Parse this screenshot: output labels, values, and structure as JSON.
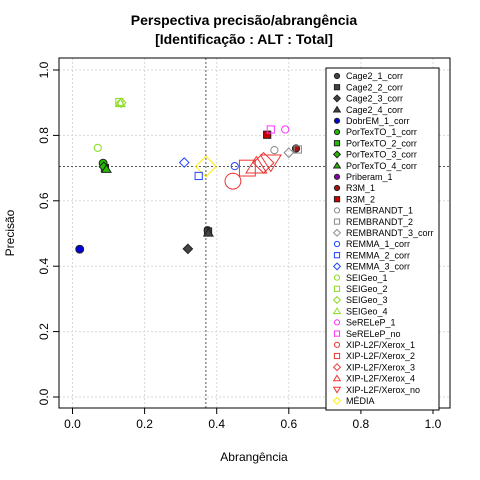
{
  "chart_data": {
    "type": "scatter",
    "title": "Perspectiva precisão/abrangência",
    "subtitle": "[Identificação : ALT : Total]",
    "xlabel": "Abrangência",
    "ylabel": "Precisão",
    "xlim": [
      0,
      1
    ],
    "ylim": [
      0,
      1
    ],
    "xticks": [
      "0.0",
      "0.2",
      "0.4",
      "0.6",
      "0.8",
      "1.0"
    ],
    "yticks": [
      "0.0",
      "0.2",
      "0.4",
      "0.6",
      "0.8",
      "1.0"
    ],
    "grid": true,
    "legend_position": "right",
    "reference_lines": {
      "x": 0.37,
      "y": 0.705
    },
    "series": [
      {
        "name": "Cage2_1_corr",
        "color": "#444444",
        "marker": "circle-filled",
        "size": 1,
        "x": 0.375,
        "y": 0.51
      },
      {
        "name": "Cage2_2_corr",
        "color": "#444444",
        "marker": "square-filled",
        "size": 1,
        "x": 0.376,
        "y": 0.506
      },
      {
        "name": "Cage2_3_corr",
        "color": "#444444",
        "marker": "diamond-filled",
        "size": 1,
        "x": 0.32,
        "y": 0.453
      },
      {
        "name": "Cage2_4_corr",
        "color": "#444444",
        "marker": "triangle-filled",
        "size": 1,
        "x": 0.377,
        "y": 0.502
      },
      {
        "name": "DobrEM_1_corr",
        "color": "#0000dd",
        "marker": "circle-filled",
        "size": 1.1,
        "x": 0.02,
        "y": 0.452
      },
      {
        "name": "PorTexTO_1_corr",
        "color": "#22bb00",
        "marker": "circle-filled",
        "size": 1.1,
        "x": 0.085,
        "y": 0.715
      },
      {
        "name": "PorTexTO_2_corr",
        "color": "#22bb00",
        "marker": "square-filled",
        "size": 1,
        "x": 0.09,
        "y": 0.7
      },
      {
        "name": "PorTexTO_3_corr",
        "color": "#22bb00",
        "marker": "diamond-filled",
        "size": 1,
        "x": 0.087,
        "y": 0.704
      },
      {
        "name": "PorTexTO_4_corr",
        "color": "#22bb00",
        "marker": "triangle-filled",
        "size": 1,
        "x": 0.094,
        "y": 0.697
      },
      {
        "name": "Priberam_1",
        "color": "#8800aa",
        "marker": "circle-filled",
        "size": 1,
        "x": null,
        "y": null
      },
      {
        "name": "R3M_1",
        "color": "#aa1111",
        "marker": "circle-filled",
        "size": 1,
        "x": 0.62,
        "y": 0.76
      },
      {
        "name": "R3M_2",
        "color": "#cc0000",
        "marker": "square-filled",
        "size": 1,
        "x": 0.54,
        "y": 0.802
      },
      {
        "name": "REMBRANDT_1",
        "color": "#888888",
        "marker": "circle-open",
        "size": 1,
        "x": 0.56,
        "y": 0.755
      },
      {
        "name": "REMBRANDT_2",
        "color": "#888888",
        "marker": "square-open",
        "size": 1,
        "x": 0.625,
        "y": 0.757
      },
      {
        "name": "REMBRANDT_3_corr",
        "color": "#888888",
        "marker": "diamond-open",
        "size": 1,
        "x": 0.6,
        "y": 0.747
      },
      {
        "name": "REMMA_1_corr",
        "color": "#2244ff",
        "marker": "circle-open",
        "size": 1,
        "x": 0.45,
        "y": 0.706
      },
      {
        "name": "REMMA_2_corr",
        "color": "#2244ff",
        "marker": "square-open",
        "size": 1,
        "x": 0.35,
        "y": 0.676
      },
      {
        "name": "REMMA_3_corr",
        "color": "#2244ff",
        "marker": "diamond-open",
        "size": 1,
        "x": 0.31,
        "y": 0.717
      },
      {
        "name": "SEIGeo_1",
        "color": "#88dd22",
        "marker": "circle-open",
        "size": 1,
        "x": 0.07,
        "y": 0.762
      },
      {
        "name": "SEIGeo_2",
        "color": "#88dd22",
        "marker": "square-open",
        "size": 1,
        "x": 0.13,
        "y": 0.902
      },
      {
        "name": "SEIGeo_3",
        "color": "#88dd22",
        "marker": "diamond-open",
        "size": 1,
        "x": 0.135,
        "y": 0.9
      },
      {
        "name": "SEIGeo_4",
        "color": "#88dd22",
        "marker": "triangle-open",
        "size": 1,
        "x": 0.133,
        "y": 0.898
      },
      {
        "name": "SeRELeP_1",
        "color": "#ff33ff",
        "marker": "circle-open",
        "size": 1,
        "x": 0.59,
        "y": 0.818
      },
      {
        "name": "SeRELeP_no",
        "color": "#ff33ff",
        "marker": "square-open",
        "size": 1,
        "x": 0.55,
        "y": 0.818
      },
      {
        "name": "XIP-L2F/Xerox_1",
        "color": "#ee3333",
        "marker": "circle-open",
        "size": 2.2,
        "x": 0.445,
        "y": 0.66
      },
      {
        "name": "XIP-L2F/Xerox_2",
        "color": "#ee3333",
        "marker": "square-open",
        "size": 2.2,
        "x": 0.485,
        "y": 0.7
      },
      {
        "name": "XIP-L2F/Xerox_3",
        "color": "#ee3333",
        "marker": "diamond-open",
        "size": 2.2,
        "x": 0.53,
        "y": 0.716
      },
      {
        "name": "XIP-L2F/Xerox_4",
        "color": "#ee3333",
        "marker": "triangle-open",
        "size": 2.2,
        "x": 0.51,
        "y": 0.707
      },
      {
        "name": "XIP-L2F/Xerox_no",
        "color": "#ee3333",
        "marker": "triangle-down-open",
        "size": 2.2,
        "x": 0.55,
        "y": 0.718
      },
      {
        "name": "MÉDIA",
        "color": "#ffee00",
        "marker": "diamond-open",
        "size": 2.2,
        "x": 0.37,
        "y": 0.705
      }
    ]
  }
}
